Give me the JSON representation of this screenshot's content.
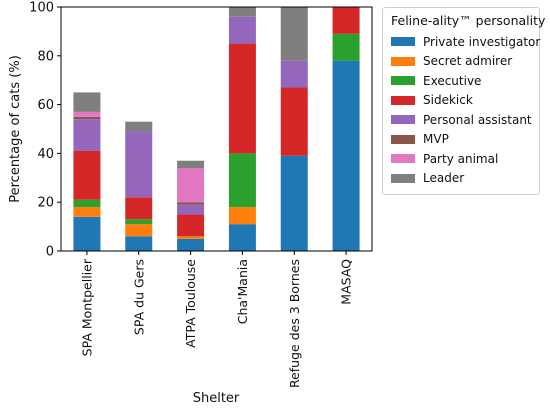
{
  "chart_data": {
    "type": "bar",
    "stacked": true,
    "xlabel": "Shelter",
    "ylabel": "Percentage of cats (%)",
    "ylim": [
      0,
      100
    ],
    "yticks": [
      0,
      20,
      40,
      60,
      80,
      100
    ],
    "categories": [
      "SPA Montpellier",
      "SPA du Gers",
      "ATPA Toulouse",
      "Cha'Mania",
      "Refuge des 3 Bornes",
      "MASAQ"
    ],
    "legend_title": "Feline-ality™ personality",
    "legend_position": "outside-top-right",
    "grid": false,
    "series": [
      {
        "name": "Private investigator",
        "color": "#1f77b4",
        "values": [
          14,
          6,
          5,
          11,
          39,
          78
        ]
      },
      {
        "name": "Secret admirer",
        "color": "#ff7f0e",
        "values": [
          4,
          5,
          1,
          7,
          0,
          0
        ]
      },
      {
        "name": "Executive",
        "color": "#2ca02c",
        "values": [
          3,
          2,
          0,
          22,
          0,
          11
        ]
      },
      {
        "name": "Sidekick",
        "color": "#d62728",
        "values": [
          20,
          9,
          9,
          45,
          28,
          11
        ]
      },
      {
        "name": "Personal assistant",
        "color": "#9467bd",
        "values": [
          13,
          27,
          4,
          11,
          11,
          0
        ]
      },
      {
        "name": "MVP",
        "color": "#8c564b",
        "values": [
          1,
          0,
          1,
          0,
          0,
          0
        ]
      },
      {
        "name": "Party animal",
        "color": "#e377c2",
        "values": [
          2,
          0,
          14,
          0,
          0,
          0
        ]
      },
      {
        "name": "Leader",
        "color": "#7f7f7f",
        "values": [
          8,
          4,
          3,
          4,
          22,
          0
        ]
      }
    ]
  }
}
